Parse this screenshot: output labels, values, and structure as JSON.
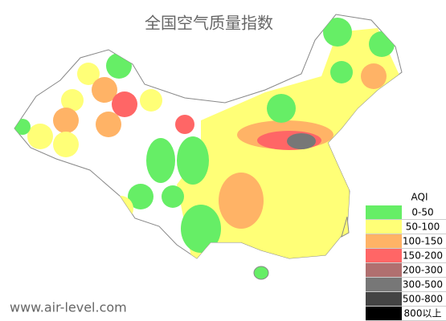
{
  "title": "全国空气质量指数",
  "legend": {
    "title": "AQI",
    "items": [
      {
        "label": "0-50",
        "color": "#66ee66"
      },
      {
        "label": "50-100",
        "color": "#ffff77"
      },
      {
        "label": "100-150",
        "color": "#ffb366"
      },
      {
        "label": "150-200",
        "color": "#ff6666"
      },
      {
        "label": "200-300",
        "color": "#b07070"
      },
      {
        "label": "300-500",
        "color": "#777777"
      },
      {
        "label": "500-800",
        "color": "#444444"
      },
      {
        "label": "800以上",
        "color": "#000000"
      }
    ]
  },
  "footer": "www.air-level.com"
}
